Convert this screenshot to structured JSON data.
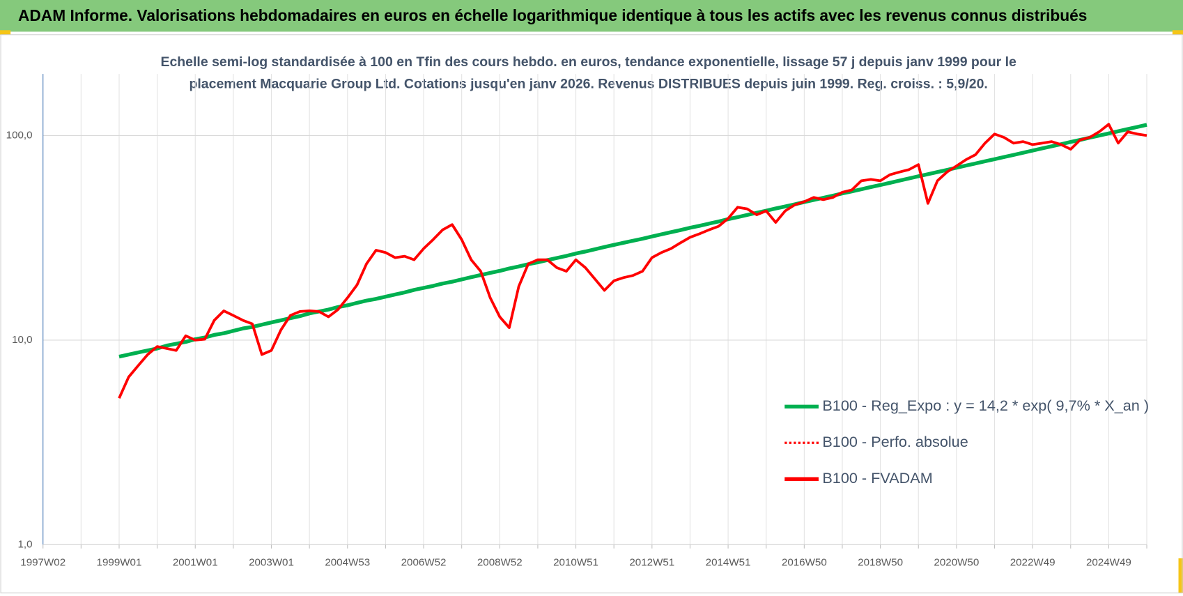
{
  "header": {
    "title": "ADAM Informe. Valorisations hebdomadaires en euros en échelle logarithmique identique à tous les actifs avec les revenus connus distribués"
  },
  "chart_data": {
    "type": "line",
    "title": "Echelle semi-log standardisée à 100 en Tfin des cours hebdo. en euros, tendance exponentielle, lissage 57 j depuis janv 1999 pour le",
    "subtitle": "placement Macquarie Group Ltd. Cotations jusqu'en janv 2026. Revenus DISTRIBUES depuis juin 1999. Reg. croiss. : 5,9/20.",
    "yscale": "log",
    "grid": true,
    "legend": "right",
    "ylim": [
      1,
      200
    ],
    "yticks": [
      {
        "value": 1,
        "label": "1,0"
      },
      {
        "value": 10,
        "label": "10,0"
      },
      {
        "value": 100,
        "label": "100,0"
      }
    ],
    "categories": [
      "1997W02",
      null,
      null,
      null,
      null,
      null,
      null,
      null,
      "1999W01",
      null,
      null,
      null,
      null,
      null,
      null,
      null,
      "2001W01",
      null,
      null,
      null,
      null,
      null,
      null,
      null,
      "2003W01",
      null,
      null,
      null,
      null,
      null,
      null,
      null,
      "2004W53",
      null,
      null,
      null,
      null,
      null,
      null,
      null,
      "2006W52",
      null,
      null,
      null,
      null,
      null,
      null,
      null,
      "2008W52",
      null,
      null,
      null,
      null,
      null,
      null,
      null,
      "2010W51",
      null,
      null,
      null,
      null,
      null,
      null,
      null,
      "2012W51",
      null,
      null,
      null,
      null,
      null,
      null,
      null,
      "2014W51",
      null,
      null,
      null,
      null,
      null,
      null,
      null,
      "2016W50",
      null,
      null,
      null,
      null,
      null,
      null,
      null,
      "2018W50",
      null,
      null,
      null,
      null,
      null,
      null,
      null,
      "2020W50",
      null,
      null,
      null,
      null,
      null,
      null,
      null,
      "2022W49",
      null,
      null,
      null,
      null,
      null,
      null,
      null,
      "2024W49",
      null,
      null,
      null,
      null
    ],
    "series": [
      {
        "name": "B100 - Reg_Expo : y = 14,2 * exp( 9,7% *  X_an )",
        "color": "#00b050",
        "style": "solid",
        "width": 5,
        "values": [
          null,
          null,
          null,
          null,
          null,
          null,
          null,
          null,
          8.3,
          8.5,
          8.7,
          8.9,
          9.1,
          9.4,
          9.6,
          9.8,
          10.1,
          10.3,
          10.6,
          10.8,
          11.1,
          11.4,
          11.6,
          11.9,
          12.2,
          12.5,
          12.8,
          13.1,
          13.5,
          13.8,
          14.1,
          14.5,
          14.8,
          15.2,
          15.6,
          15.9,
          16.3,
          16.7,
          17.1,
          17.6,
          18.0,
          18.4,
          18.9,
          19.3,
          19.8,
          20.3,
          20.8,
          21.3,
          21.8,
          22.4,
          22.9,
          23.5,
          24.0,
          24.6,
          25.2,
          25.8,
          26.5,
          27.1,
          27.8,
          28.5,
          29.2,
          29.9,
          30.6,
          31.3,
          32.1,
          32.9,
          33.7,
          34.5,
          35.4,
          36.2,
          37.1,
          38.0,
          39.0,
          39.9,
          40.9,
          41.9,
          42.9,
          44.0,
          45.0,
          46.1,
          47.3,
          48.4,
          49.6,
          50.8,
          52.1,
          53.3,
          54.6,
          56.0,
          57.3,
          58.7,
          60.2,
          61.7,
          63.2,
          64.7,
          66.3,
          67.9,
          69.6,
          71.3,
          73.0,
          74.8,
          76.6,
          78.5,
          80.4,
          82.4,
          84.4,
          86.5,
          88.6,
          90.7,
          93.0,
          95.2,
          97.6,
          99.9,
          102.4,
          104.9,
          107.5,
          110.1,
          112.8
        ]
      },
      {
        "name": "B100 - Perfo. absolue",
        "color": "#ff0000",
        "style": "dotted",
        "width": 3
      },
      {
        "name": "B100 - FVADAM",
        "color": "#ff0000",
        "style": "solid",
        "width": 3.5,
        "values": [
          null,
          null,
          null,
          null,
          null,
          null,
          null,
          null,
          5.2,
          6.6,
          7.5,
          8.5,
          9.3,
          9.1,
          8.9,
          10.5,
          10.0,
          10.1,
          12.5,
          13.9,
          13.2,
          12.5,
          12.0,
          8.5,
          8.9,
          11.2,
          13.2,
          13.8,
          13.9,
          13.8,
          13.0,
          14.1,
          16.1,
          18.6,
          23.6,
          27.5,
          26.8,
          25.3,
          25.7,
          24.7,
          28.0,
          31.0,
          34.6,
          36.7,
          31.0,
          24.7,
          21.7,
          16.1,
          13.0,
          11.5,
          18.3,
          23.6,
          24.7,
          24.7,
          22.6,
          21.7,
          24.7,
          22.6,
          19.9,
          17.5,
          19.5,
          20.2,
          20.7,
          21.7,
          25.3,
          26.8,
          28.0,
          29.9,
          31.8,
          33.1,
          34.6,
          36.0,
          39.3,
          44.6,
          43.8,
          41.0,
          42.8,
          37.6,
          42.8,
          45.8,
          47.5,
          49.8,
          48.6,
          49.8,
          52.8,
          54.2,
          60.1,
          61.0,
          60.1,
          64.3,
          66.3,
          68.1,
          72.1,
          46.6,
          60.1,
          66.3,
          71.0,
          76.2,
          80.6,
          91.8,
          101.7,
          97.9,
          91.8,
          93.4,
          90.3,
          91.8,
          93.4,
          90.3,
          85.7,
          95.2,
          97.9,
          104.3,
          113.5,
          91.8,
          104.3,
          101.7,
          100.0
        ]
      }
    ]
  }
}
